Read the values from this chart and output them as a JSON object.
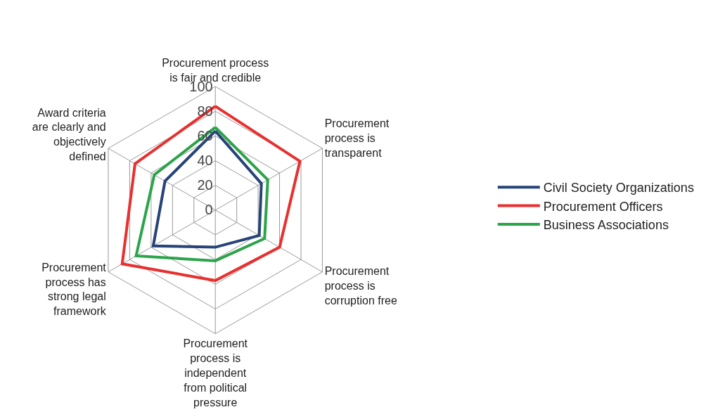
{
  "chart_data": {
    "type": "radar",
    "categories": [
      "Procurement process\nis fair and credible",
      "Procurement\nprocess is\ntransparent",
      "Procurement\nprocess is\ncorruption free",
      "Procurement\nprocess is\nindependent\nfrom political\npressure",
      "Procurement\nprocess has\nstrong legal\nframework",
      "Award criteria\nare clearly and\nobjectively\ndefined"
    ],
    "series": [
      {
        "name": "Civil Society Organizations",
        "color": "#264478",
        "values": [
          64,
          43,
          41,
          30,
          58,
          47
        ]
      },
      {
        "name": "Procurement Officers",
        "color": "#e8302f",
        "values": [
          84,
          79,
          60,
          57,
          87,
          75
        ]
      },
      {
        "name": "Business Associations",
        "color": "#2ca44a",
        "values": [
          67,
          49,
          46,
          41,
          74,
          57
        ]
      }
    ],
    "ylim": [
      0,
      100
    ],
    "yticks": [
      0,
      20,
      40,
      60,
      80,
      100
    ],
    "grid": true,
    "legend": "right",
    "marker": "none"
  }
}
